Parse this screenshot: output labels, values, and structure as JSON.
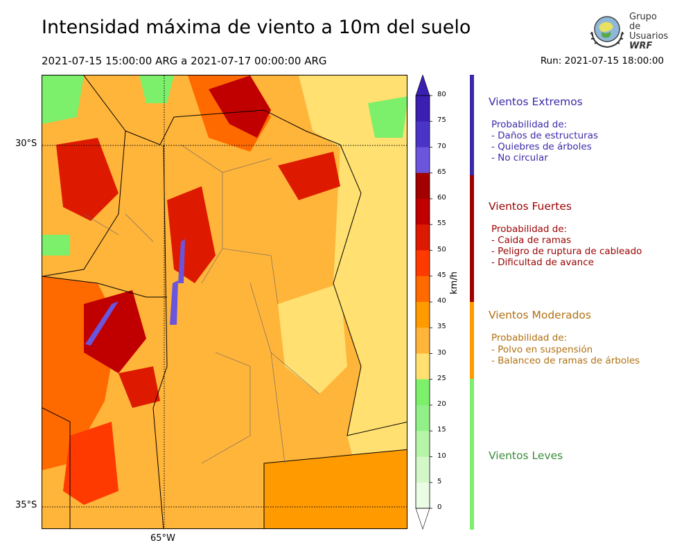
{
  "header": {
    "title": "Intensidad máxima de viento a 10m del suelo",
    "period": "2021-07-15 15:00:00 ARG  a  2021-07-17 00:00:00 ARG",
    "run": "Run: 2021-07-15 18:00:00"
  },
  "logo": {
    "line1": "Grupo de",
    "line2": "Usuarios",
    "line3": "WRF"
  },
  "map": {
    "lat_labels": [
      "30°S",
      "35°S"
    ],
    "lon_labels": [
      "65°W"
    ]
  },
  "colorbar": {
    "unit": "km/h",
    "ticks": [
      "80",
      "75",
      "70",
      "65",
      "60",
      "55",
      "50",
      "45",
      "40",
      "35",
      "30",
      "25",
      "20",
      "15",
      "10",
      "5",
      "0"
    ],
    "colors": [
      "#3a1fb0",
      "#4a34c8",
      "#6a55dc",
      "#a30000",
      "#c00000",
      "#dd1a00",
      "#ff3a00",
      "#ff6a00",
      "#ff9a00",
      "#ffb43a",
      "#ffe070",
      "#7cf06a",
      "#92f088",
      "#b6f4a8",
      "#d2f8c8",
      "#eafce4"
    ]
  },
  "categories": [
    {
      "title": "Vientos Extremos",
      "heading": "Probabilidad de:",
      "items": [
        "- Daños de estructuras",
        "- Quiebres de árboles",
        "- No circular"
      ],
      "color": "#3a2aa8"
    },
    {
      "title": "Vientos Fuertes",
      "heading": "Probabilidad de:",
      "items": [
        "- Caida de ramas",
        "- Peligro de ruptura de cableado",
        "- Dificultad de avance"
      ],
      "color": "#9b0000"
    },
    {
      "title": "Vientos Moderados",
      "heading": "Probabilidad de:",
      "items": [
        "- Polvo en suspensión",
        "- Balanceo de ramas de árboles"
      ],
      "color": "#b07010"
    },
    {
      "title": "Vientos Leves",
      "heading": "",
      "items": [],
      "color": "#3a8a3a"
    }
  ],
  "category_bar_colors": [
    "#3a2aa8",
    "#a00000",
    "#ff9a00",
    "#7cf06a"
  ]
}
